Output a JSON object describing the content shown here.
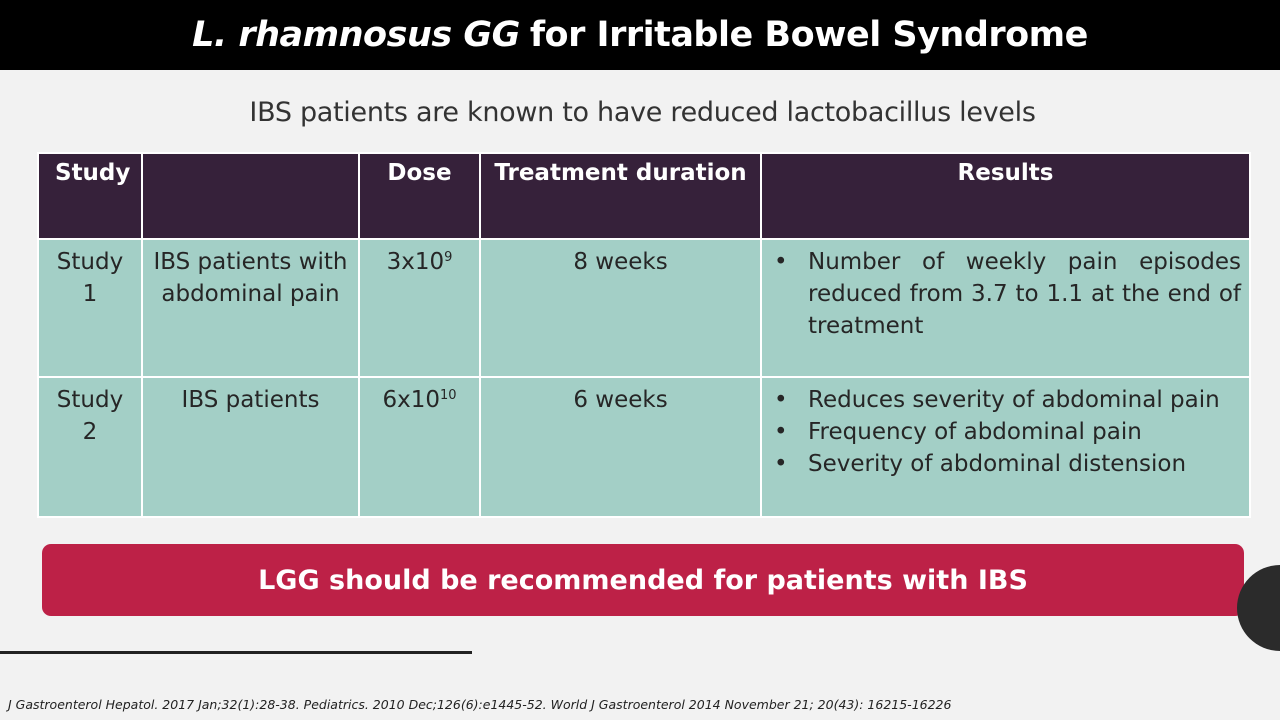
{
  "title": {
    "italic": "L. rhamnosus GG",
    "rest": "for Irritable Bowel Syndrome"
  },
  "subtitle": "IBS patients are known to have reduced lactobacillus levels",
  "table": {
    "headers": [
      "Study",
      "",
      "Dose",
      "Treatment duration",
      "Results"
    ],
    "rows": [
      {
        "study": "Study 1",
        "population": "IBS patients with abdominal pain",
        "dose_base": "3x10",
        "dose_exp": "9",
        "duration": "8 weeks",
        "results": [
          "Number of weekly pain episodes reduced from 3.7 to 1.1 at the end of treatment"
        ]
      },
      {
        "study": "Study 2",
        "population": "IBS patients",
        "dose_base": "6x10",
        "dose_exp": "10",
        "duration": "6 weeks",
        "results": [
          "Reduces severity of abdominal pain",
          "Frequency of abdominal pain",
          "Severity of abdominal distension"
        ]
      }
    ]
  },
  "banner": "LGG should be recommended for patients with IBS",
  "references": "J Gastroenterol Hepatol. 2017 Jan;32(1):28-38. Pediatrics. 2010 Dec;126(6):e1445-52. World J Gastroenterol 2014 November 21; 20(43): 16215-16226",
  "colors": {
    "title_bar": "#000000",
    "header_row": "#36213a",
    "body_rows": "#a3cfc6",
    "banner": "#bd2147",
    "background": "#f2f2f2"
  }
}
